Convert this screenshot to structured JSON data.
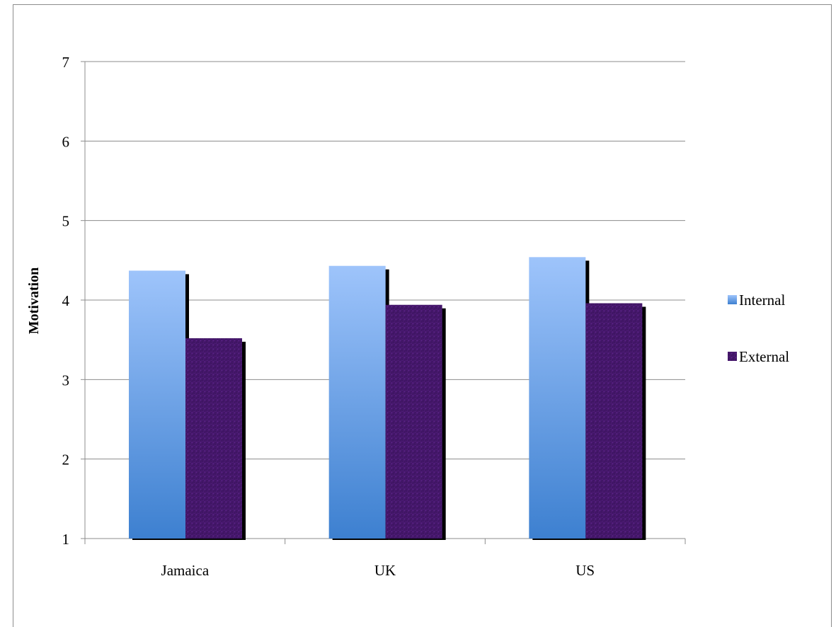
{
  "chart_data": {
    "type": "bar",
    "categories": [
      "Jamaica",
      "UK",
      "US"
    ],
    "series": [
      {
        "name": "Internal",
        "values": [
          4.37,
          4.43,
          4.54
        ],
        "color": "#5b94dc"
      },
      {
        "name": "External",
        "values": [
          3.52,
          3.94,
          3.96
        ],
        "color": "#4a1a6e"
      }
    ],
    "ylabel": "Motivation",
    "xlabel": "",
    "ylim": [
      1,
      7
    ],
    "yticks": [
      1,
      2,
      3,
      4,
      5,
      6,
      7
    ],
    "grid": true,
    "legend_position": "right"
  }
}
